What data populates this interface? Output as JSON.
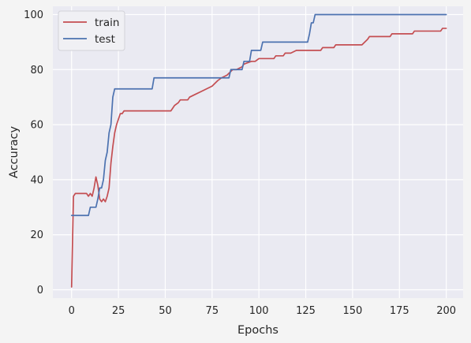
{
  "chart_data": {
    "type": "line",
    "title": "",
    "xlabel": "Epochs",
    "ylabel": "Accuracy",
    "xlim": [
      -10,
      209
    ],
    "ylim": [
      -3,
      103
    ],
    "xticks": [
      0,
      25,
      50,
      75,
      100,
      125,
      150,
      175,
      200
    ],
    "yticks": [
      0,
      20,
      40,
      60,
      80,
      100
    ],
    "grid": true,
    "legend_position": "top-left",
    "background": "#eaeaf2",
    "series": [
      {
        "name": "train",
        "color": "#c44e52",
        "points": [
          [
            0,
            1
          ],
          [
            1,
            34
          ],
          [
            2,
            35
          ],
          [
            4,
            35
          ],
          [
            8,
            35
          ],
          [
            9,
            34
          ],
          [
            10,
            35
          ],
          [
            11,
            34
          ],
          [
            12,
            37
          ],
          [
            13,
            41
          ],
          [
            14,
            38
          ],
          [
            15,
            33
          ],
          [
            16,
            32
          ],
          [
            17,
            33
          ],
          [
            18,
            32
          ],
          [
            19,
            34
          ],
          [
            20,
            37
          ],
          [
            21,
            46
          ],
          [
            22,
            52
          ],
          [
            23,
            57
          ],
          [
            24,
            60
          ],
          [
            25,
            62
          ],
          [
            26,
            64
          ],
          [
            27,
            64
          ],
          [
            28,
            65
          ],
          [
            29,
            65
          ],
          [
            53,
            65
          ],
          [
            54,
            66
          ],
          [
            55,
            67
          ],
          [
            57,
            68
          ],
          [
            58,
            69
          ],
          [
            62,
            69
          ],
          [
            63,
            70
          ],
          [
            66,
            71
          ],
          [
            69,
            72
          ],
          [
            72,
            73
          ],
          [
            75,
            74
          ],
          [
            78,
            76
          ],
          [
            80,
            77
          ],
          [
            83,
            78
          ],
          [
            86,
            80
          ],
          [
            88,
            80
          ],
          [
            91,
            81
          ],
          [
            92,
            82
          ],
          [
            96,
            83
          ],
          [
            98,
            83
          ],
          [
            100,
            84
          ],
          [
            108,
            84
          ],
          [
            109,
            85
          ],
          [
            113,
            85
          ],
          [
            114,
            86
          ],
          [
            117,
            86
          ],
          [
            120,
            87
          ],
          [
            133,
            87
          ],
          [
            134,
            88
          ],
          [
            140,
            88
          ],
          [
            141,
            89
          ],
          [
            155,
            89
          ],
          [
            158,
            91
          ],
          [
            159,
            92
          ],
          [
            170,
            92
          ],
          [
            171,
            93
          ],
          [
            182,
            93
          ],
          [
            183,
            94
          ],
          [
            197,
            94
          ],
          [
            198,
            95
          ],
          [
            200,
            95
          ]
        ]
      },
      {
        "name": "test",
        "color": "#4c72b0",
        "points": [
          [
            0,
            27
          ],
          [
            9,
            27
          ],
          [
            10,
            30
          ],
          [
            13,
            30
          ],
          [
            14,
            33
          ],
          [
            15,
            37
          ],
          [
            16,
            37
          ],
          [
            17,
            40
          ],
          [
            18,
            47
          ],
          [
            19,
            50
          ],
          [
            20,
            57
          ],
          [
            21,
            60
          ],
          [
            22,
            70
          ],
          [
            23,
            73
          ],
          [
            43,
            73
          ],
          [
            44,
            77
          ],
          [
            84,
            77
          ],
          [
            85,
            80
          ],
          [
            91,
            80
          ],
          [
            92,
            83
          ],
          [
            95,
            83
          ],
          [
            96,
            87
          ],
          [
            101,
            87
          ],
          [
            102,
            90
          ],
          [
            126,
            90
          ],
          [
            127,
            93
          ],
          [
            128,
            97
          ],
          [
            129,
            97
          ],
          [
            130,
            100
          ],
          [
            200,
            100
          ]
        ]
      }
    ]
  }
}
